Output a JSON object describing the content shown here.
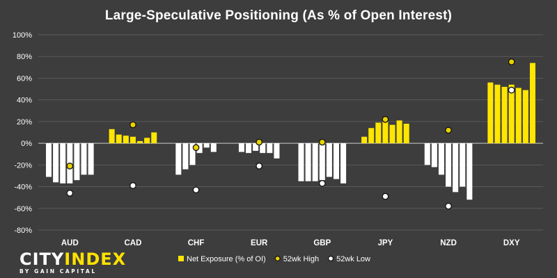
{
  "chart_data": {
    "type": "bar",
    "title": "Large-Speculative Positioning (As % of Open Interest)",
    "xlabel": "",
    "ylabel": "",
    "ylim": [
      -80,
      100
    ],
    "yticks": [
      -80,
      -60,
      -40,
      -20,
      0,
      20,
      40,
      60,
      80,
      100
    ],
    "ytick_labels": [
      "-80%",
      "-60%",
      "-40%",
      "-20%",
      "0%",
      "20%",
      "40%",
      "60%",
      "80%",
      "100%"
    ],
    "grid": true,
    "legend_position": "bottom",
    "categories": [
      "AUD",
      "CAD",
      "CHF",
      "EUR",
      "GBP",
      "JPY",
      "NZD",
      "DXY"
    ],
    "series": [
      {
        "name": "Net Exposure (% of OI)",
        "kind": "bars",
        "values": [
          [
            -31,
            -36,
            -37,
            -37,
            -34,
            -29,
            -29
          ],
          [
            13,
            8,
            7,
            6,
            2,
            5,
            10
          ],
          [
            -29,
            -24,
            -20,
            -9,
            -4,
            -8
          ],
          [
            -8,
            -9,
            -7,
            -9,
            -9,
            -14
          ],
          [
            -35,
            -35,
            -35,
            -34,
            -31,
            -33,
            -37
          ],
          [
            6,
            14,
            19,
            22,
            17,
            21,
            18
          ],
          [
            -20,
            -22,
            -29,
            -40,
            -45,
            -40,
            -52
          ],
          [
            56,
            54,
            52,
            54,
            51,
            49,
            74
          ]
        ]
      },
      {
        "name": "52wk High",
        "kind": "marker",
        "values": [
          -21,
          17,
          -4,
          1,
          1,
          22,
          12,
          75
        ]
      },
      {
        "name": "52wk Low",
        "kind": "marker",
        "values": [
          -46,
          -39,
          -43,
          -21,
          -37,
          -49,
          -58,
          49
        ]
      }
    ],
    "colors": {
      "background": "#3d3d3d",
      "grid": "#5a5a5a",
      "zero_line": "#cfcfcf",
      "positive_bar": "#ffe600",
      "negative_bar": "#ffffff",
      "high_marker": "#e8d200",
      "low_marker": "#ffffff",
      "marker_stroke": "#111111",
      "text": "#ffffff"
    }
  },
  "logo": {
    "main_white": "CITY",
    "main_accent": "INDEX",
    "sub": "BY GAIN CAPITAL"
  }
}
